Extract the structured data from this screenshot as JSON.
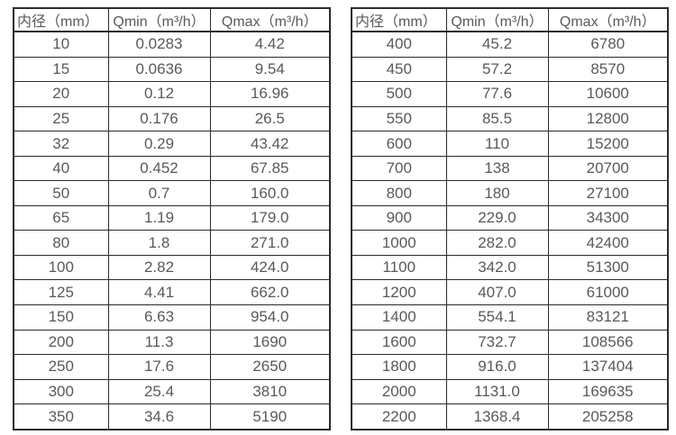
{
  "colors": {
    "border": "#2b2b2b",
    "text": "#595959",
    "background": "#ffffff"
  },
  "tables": [
    {
      "name": "small-diameter-spec-table",
      "headers": [
        "内径（mm）",
        "Qmin（m³/h）",
        "Qmax（m³/h）"
      ],
      "rows": [
        [
          "10",
          "0.0283",
          "4.42"
        ],
        [
          "15",
          "0.0636",
          "9.54"
        ],
        [
          "20",
          "0.12",
          "16.96"
        ],
        [
          "25",
          "0.176",
          "26.5"
        ],
        [
          "32",
          "0.29",
          "43.42"
        ],
        [
          "40",
          "0.452",
          "67.85"
        ],
        [
          "50",
          "0.7",
          "160.0"
        ],
        [
          "65",
          "1.19",
          "179.0"
        ],
        [
          "80",
          "1.8",
          "271.0"
        ],
        [
          "100",
          "2.82",
          "424.0"
        ],
        [
          "125",
          "4.41",
          "662.0"
        ],
        [
          "150",
          "6.63",
          "954.0"
        ],
        [
          "200",
          "11.3",
          "1690"
        ],
        [
          "250",
          "17.6",
          "2650"
        ],
        [
          "300",
          "25.4",
          "3810"
        ],
        [
          "350",
          "34.6",
          "5190"
        ]
      ]
    },
    {
      "name": "large-diameter-spec-table",
      "headers": [
        "内径（mm）",
        "Qmin（m³/h）",
        "Qmax（m³/h）"
      ],
      "rows": [
        [
          "400",
          "45.2",
          "6780"
        ],
        [
          "450",
          "57.2",
          "8570"
        ],
        [
          "500",
          "77.6",
          "10600"
        ],
        [
          "550",
          "85.5",
          "12800"
        ],
        [
          "600",
          "110",
          "15200"
        ],
        [
          "700",
          "138",
          "20700"
        ],
        [
          "800",
          "180",
          "27100"
        ],
        [
          "900",
          "229.0",
          "34300"
        ],
        [
          "1000",
          "282.0",
          "42400"
        ],
        [
          "1100",
          "342.0",
          "51300"
        ],
        [
          "1200",
          "407.0",
          "61000"
        ],
        [
          "1400",
          "554.1",
          "83121"
        ],
        [
          "1600",
          "732.7",
          "108566"
        ],
        [
          "1800",
          "916.0",
          "137404"
        ],
        [
          "2000",
          "1131.0",
          "169635"
        ],
        [
          "2200",
          "1368.4",
          "205258"
        ]
      ]
    }
  ]
}
